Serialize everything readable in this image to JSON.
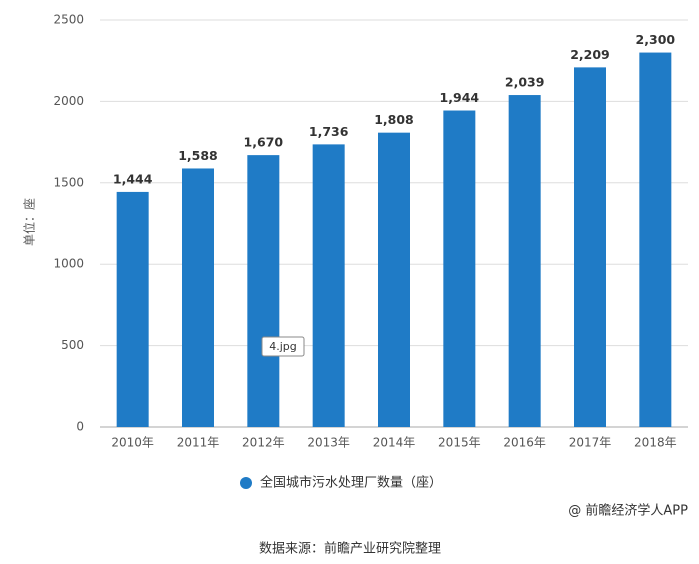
{
  "chart_data": {
    "type": "bar",
    "y_axis_label": "单位：座",
    "categories": [
      "2010年",
      "2011年",
      "2012年",
      "2013年",
      "2014年",
      "2015年",
      "2016年",
      "2017年",
      "2018年"
    ],
    "series": [
      {
        "name": "全国城市污水处理厂数量（座）",
        "color": "#1f7bc6",
        "values": [
          1444,
          1588,
          1670,
          1736,
          1808,
          1944,
          2039,
          2209,
          2300
        ],
        "value_labels": [
          "1,444",
          "1,588",
          "1,670",
          "1,736",
          "1,808",
          "1,944",
          "2,039",
          "2,209",
          "2,300"
        ]
      }
    ],
    "ylim": [
      0,
      2500
    ],
    "yticks": [
      0,
      500,
      1000,
      1500,
      2000,
      2500
    ],
    "grid": true,
    "tooltip": "4.jpg",
    "credit": "@ 前瞻经济学人APP",
    "source": "数据来源：前瞻产业研究院整理"
  }
}
